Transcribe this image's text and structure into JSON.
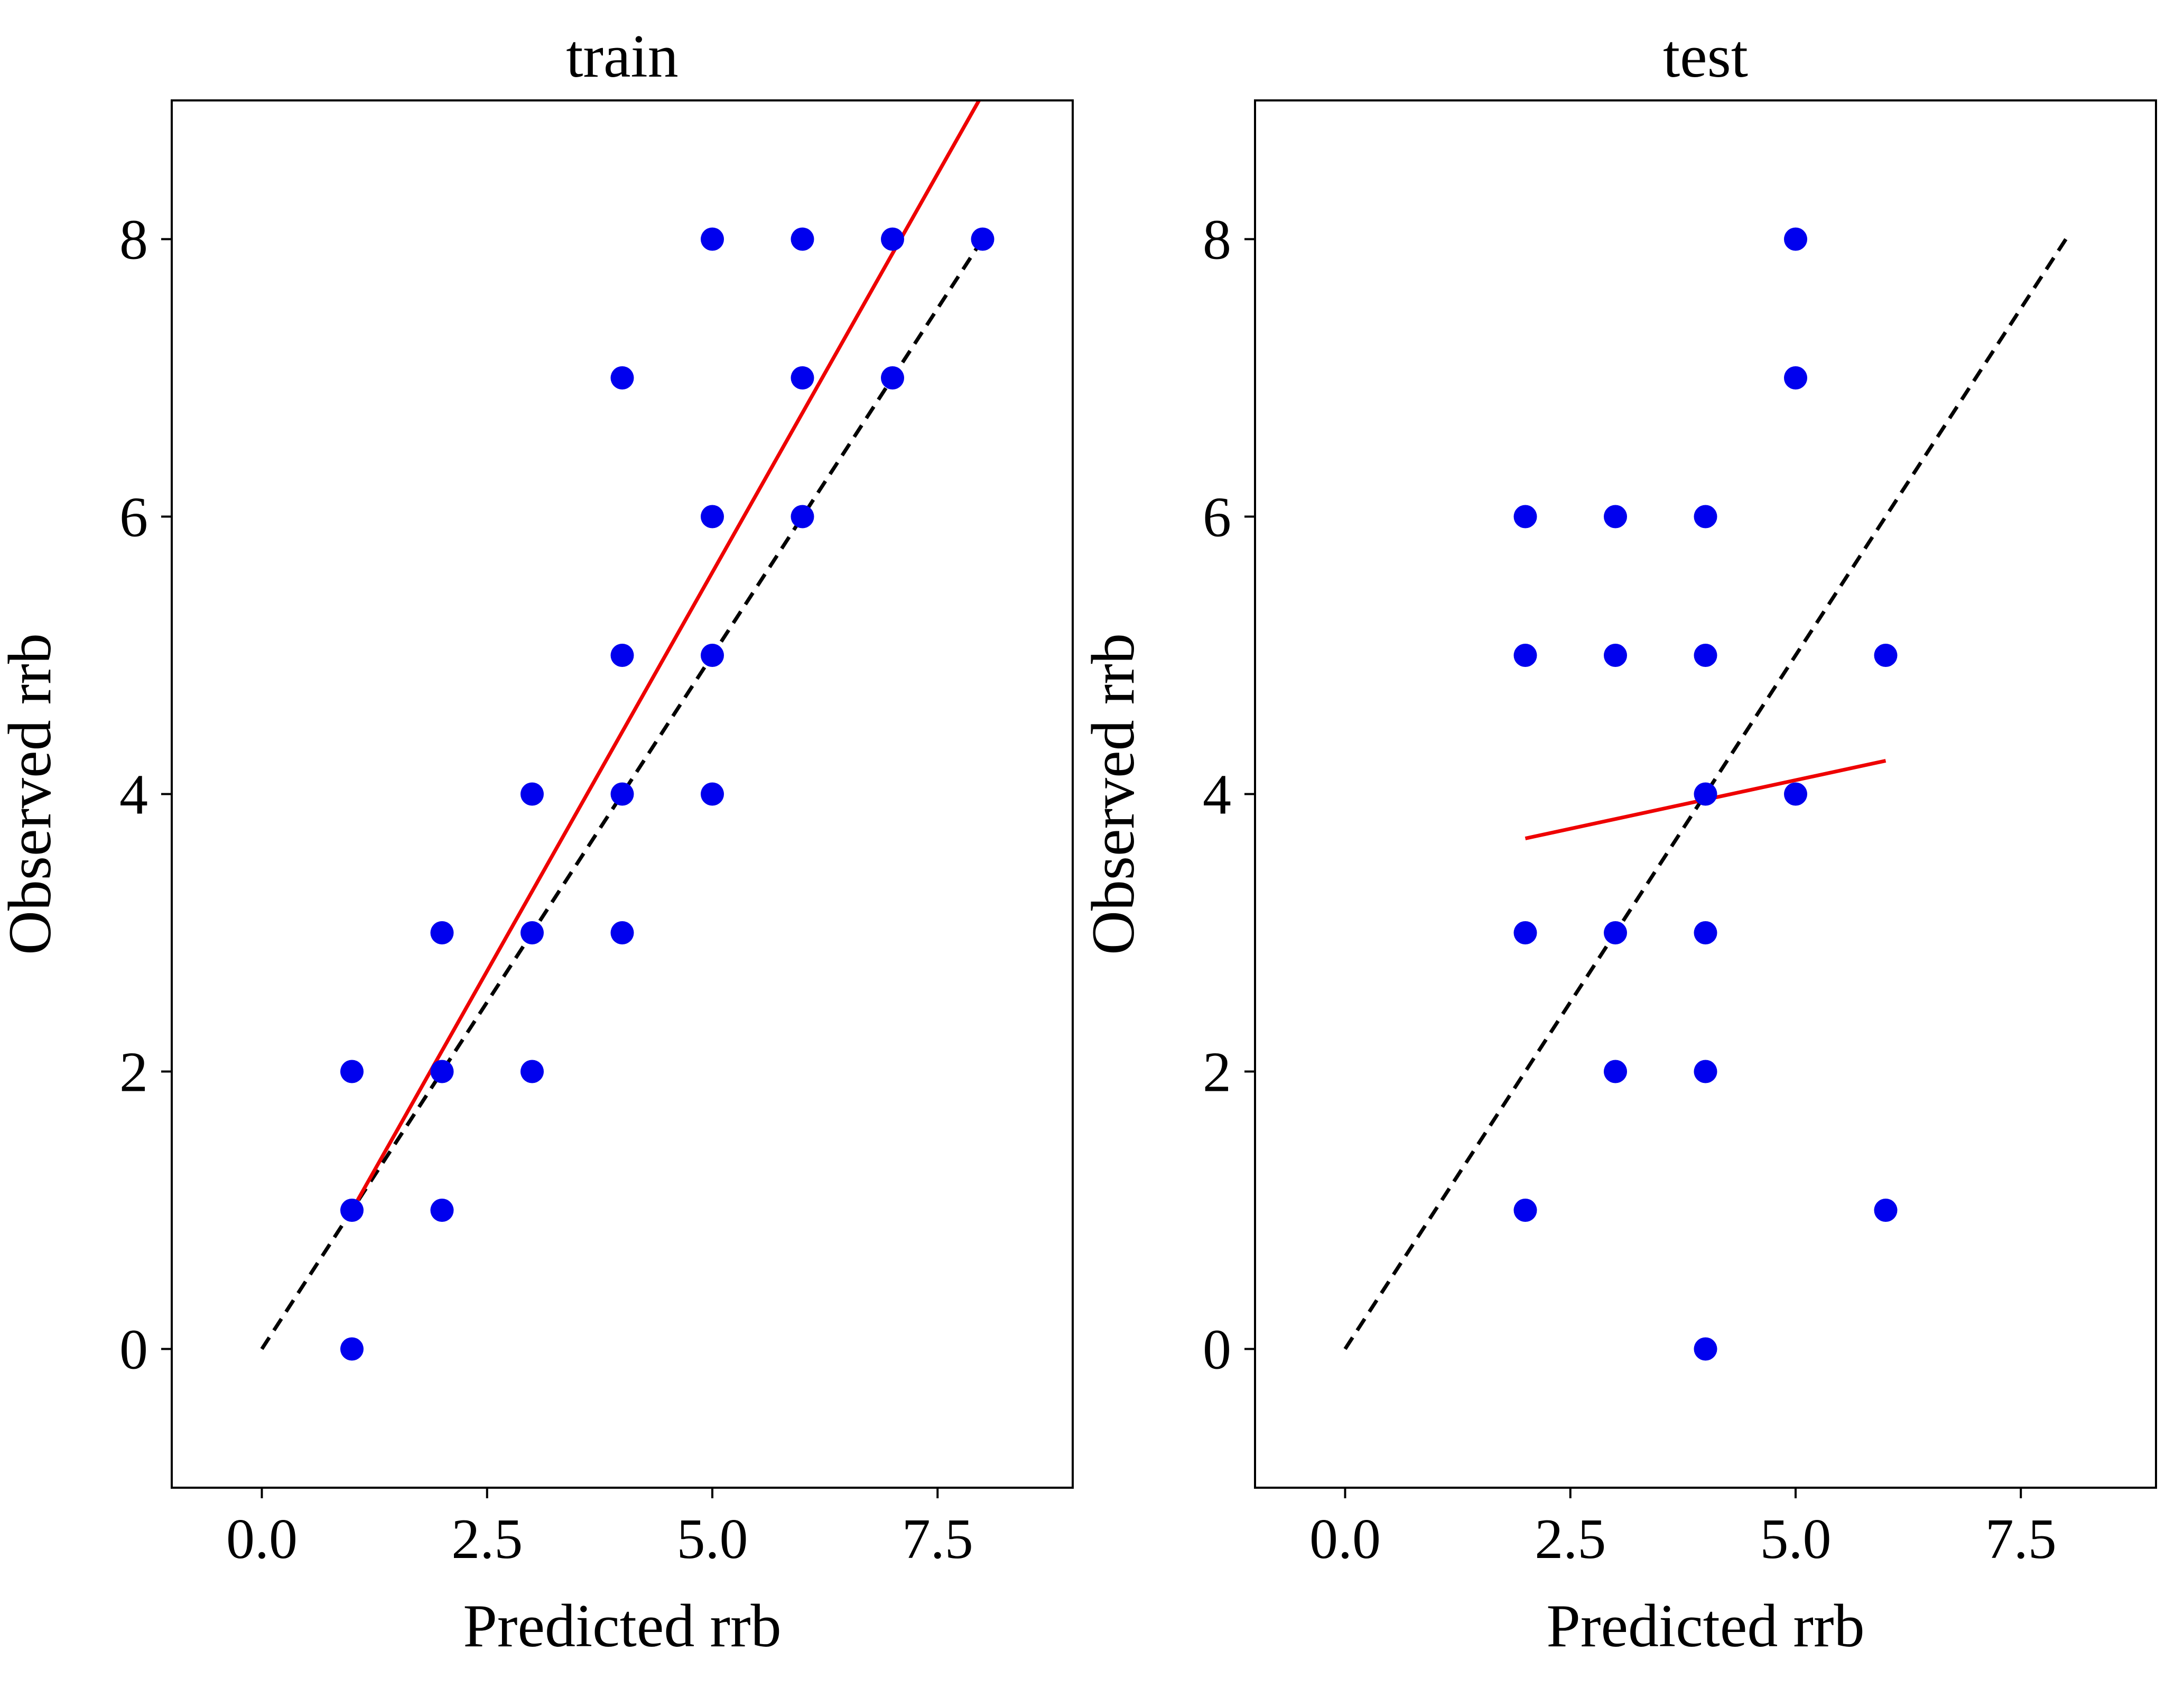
{
  "chart_data": [
    {
      "type": "scatter",
      "title": "train",
      "xlabel": "Predicted rrb",
      "ylabel": "Observed rrb",
      "xlim": [
        -1,
        9
      ],
      "ylim": [
        -1,
        9
      ],
      "xticks": [
        0.0,
        2.5,
        5.0,
        7.5
      ],
      "xtick_labels": [
        "0.0",
        "2.5",
        "5.0",
        "7.5"
      ],
      "yticks": [
        0,
        2,
        4,
        6,
        8
      ],
      "ytick_labels": [
        "0",
        "2",
        "4",
        "6",
        "8"
      ],
      "grid": false,
      "points": {
        "color": "#0000ee",
        "x": [
          1,
          1,
          1,
          2,
          2,
          2,
          3,
          3,
          3,
          4,
          4,
          4,
          4,
          5,
          5,
          5,
          5,
          6,
          6,
          6,
          7,
          7,
          8
        ],
        "y": [
          0,
          1,
          2,
          1,
          2,
          3,
          2,
          3,
          4,
          3,
          4,
          5,
          7,
          4,
          5,
          6,
          8,
          6,
          7,
          8,
          7,
          8,
          8
        ]
      },
      "fit_line": {
        "color": "#ee0000",
        "style": "solid",
        "x": [
          1,
          7.96
        ],
        "y": [
          1.0,
          9.0
        ]
      },
      "identity_line": {
        "color": "#000000",
        "style": "dashed",
        "x": [
          0,
          8
        ],
        "y": [
          0,
          8
        ]
      }
    },
    {
      "type": "scatter",
      "title": "test",
      "xlabel": "Predicted rrb",
      "ylabel": "Observed rrb",
      "xlim": [
        -1,
        9
      ],
      "ylim": [
        -1,
        9
      ],
      "xticks": [
        0.0,
        2.5,
        5.0,
        7.5
      ],
      "xtick_labels": [
        "0.0",
        "2.5",
        "5.0",
        "7.5"
      ],
      "yticks": [
        0,
        2,
        4,
        6,
        8
      ],
      "ytick_labels": [
        "0",
        "2",
        "4",
        "6",
        "8"
      ],
      "grid": false,
      "points": {
        "color": "#0000ee",
        "x": [
          2,
          2,
          2,
          2,
          3,
          3,
          3,
          3,
          4,
          4,
          4,
          4,
          4,
          4,
          5,
          5,
          5,
          6,
          6
        ],
        "y": [
          1,
          3,
          5,
          6,
          2,
          3,
          5,
          6,
          0,
          2,
          3,
          4,
          5,
          6,
          4,
          7,
          8,
          1,
          5
        ]
      },
      "fit_line": {
        "color": "#ee0000",
        "style": "solid",
        "x": [
          2,
          6
        ],
        "y": [
          3.68,
          4.24
        ]
      },
      "identity_line": {
        "color": "#000000",
        "style": "dashed",
        "x": [
          0,
          8
        ],
        "y": [
          0,
          8
        ]
      }
    }
  ]
}
